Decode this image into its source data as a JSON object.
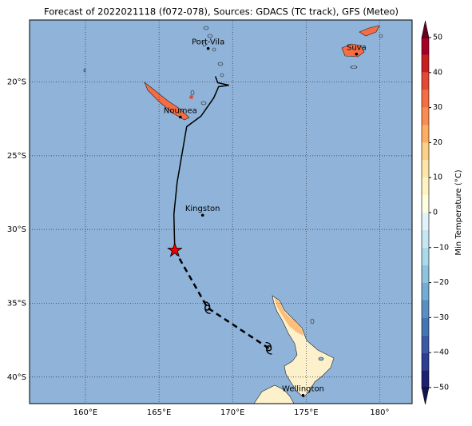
{
  "chart_data": {
    "type": "map",
    "title": "Forecast of 2022021118 (f072-078), Sources: GDACS (TC track), GFS (Meteo)",
    "xlim": [
      156.2,
      182.2
    ],
    "ylim": [
      -41.8,
      -15.8
    ],
    "xticks": [
      {
        "value": 160,
        "label": "160°E"
      },
      {
        "value": 165,
        "label": "165°E"
      },
      {
        "value": 170,
        "label": "170°E"
      },
      {
        "value": 175,
        "label": "175°E"
      },
      {
        "value": 180,
        "label": "180°"
      }
    ],
    "yticks": [
      {
        "value": -20,
        "label": "20°S"
      },
      {
        "value": -25,
        "label": "25°S"
      },
      {
        "value": -30,
        "label": "30°S"
      },
      {
        "value": -35,
        "label": "35°S"
      },
      {
        "value": -40,
        "label": "40°S"
      }
    ],
    "grid": true,
    "ocean_color": "#8fb3d9",
    "cities": [
      {
        "name": "Port-Vila",
        "lon": 168.34,
        "lat": -17.73
      },
      {
        "name": "Suva",
        "lon": 178.42,
        "lat": -18.11
      },
      {
        "name": "Noumea",
        "lon": 166.45,
        "lat": -22.38
      },
      {
        "name": "Kingston",
        "lon": 167.96,
        "lat": -29.03
      },
      {
        "name": "Wellington",
        "lon": 174.79,
        "lat": -41.24
      }
    ],
    "track": {
      "past": {
        "lon": [
          168.83,
          168.99,
          169.75,
          169.05,
          168.72,
          167.85,
          166.88,
          166.23,
          166.01
        ],
        "lat": [
          -19.62,
          -20.05,
          -20.22,
          -20.32,
          -21.08,
          -22.32,
          -23.03,
          -26.81,
          -28.97
        ]
      },
      "current": {
        "lon": 166.07,
        "lat": -31.41
      },
      "forecast": {
        "lon": [
          168.29,
          172.46
        ],
        "lat": [
          -35.3,
          -38.05
        ]
      }
    },
    "colorbar": {
      "label": "Min Temperature (°C)",
      "lim": [
        -50,
        50
      ],
      "ticks": [
        {
          "value": -50,
          "label": "−50"
        },
        {
          "value": -40,
          "label": "−40"
        },
        {
          "value": -30,
          "label": "−30"
        },
        {
          "value": -20,
          "label": "−20"
        },
        {
          "value": -10,
          "label": "−10"
        },
        0,
        10,
        20,
        30,
        40,
        50
      ],
      "bounds": [
        -50,
        -45,
        -40,
        -35,
        -30,
        -25,
        -20,
        -15,
        -10,
        -5,
        0,
        5,
        10,
        15,
        20,
        25,
        30,
        35,
        40,
        45,
        50
      ],
      "colors": [
        "#1d2170",
        "#2b3d94",
        "#3a5aa8",
        "#4575b4",
        "#5b8fc2",
        "#74add1",
        "#90c3dd",
        "#abd9e9",
        "#c6e6f1",
        "#e0f3f8",
        "#fffde0",
        "#fff3c4",
        "#fee7a6",
        "#fdd08a",
        "#fdae61",
        "#f88d52",
        "#f46d43",
        "#e34a33",
        "#c8201e",
        "#a50026"
      ]
    }
  }
}
